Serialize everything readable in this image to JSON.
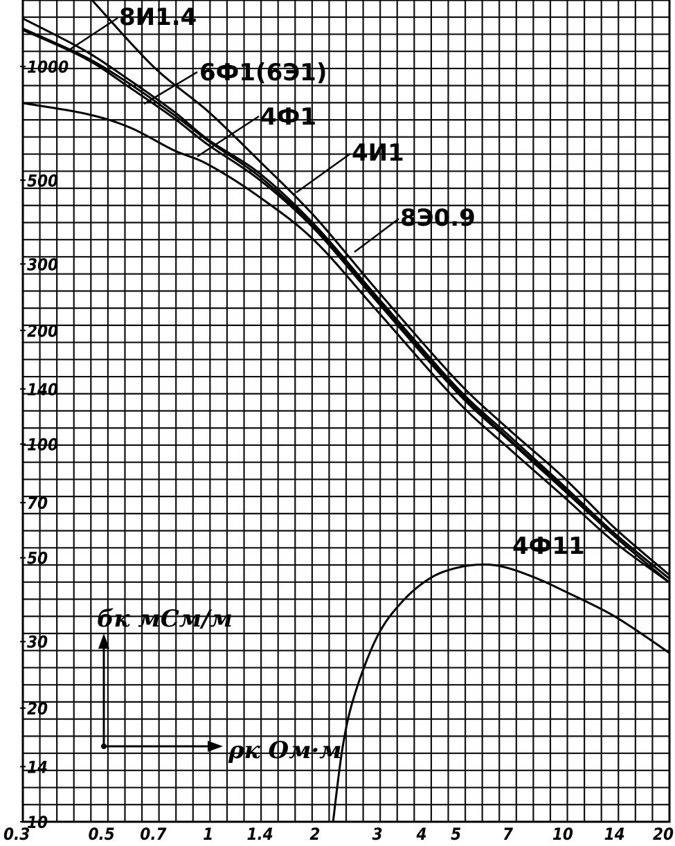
{
  "chart_data": {
    "type": "line",
    "x_scale": "log",
    "y_scale": "log",
    "xlim": [
      0.3,
      20
    ],
    "ylim": [
      10,
      1500
    ],
    "grid": true,
    "x_ticks": [
      {
        "value": 0.3,
        "label": "0.3"
      },
      {
        "value": 0.5,
        "label": "0.5"
      },
      {
        "value": 0.7,
        "label": "0.7"
      },
      {
        "value": 1,
        "label": "1"
      },
      {
        "value": 1.4,
        "label": "1.4"
      },
      {
        "value": 2,
        "label": "2"
      },
      {
        "value": 3,
        "label": "3"
      },
      {
        "value": 4,
        "label": "4"
      },
      {
        "value": 5,
        "label": "5"
      },
      {
        "value": 7,
        "label": "7"
      },
      {
        "value": 10,
        "label": "10"
      },
      {
        "value": 14,
        "label": "14"
      },
      {
        "value": 20,
        "label": "20"
      }
    ],
    "y_ticks": [
      {
        "value": 1000,
        "label": "1000"
      },
      {
        "value": 500,
        "label": "500"
      },
      {
        "value": 300,
        "label": "300"
      },
      {
        "value": 200,
        "label": "200"
      },
      {
        "value": 140,
        "label": "140"
      },
      {
        "value": 100,
        "label": "100"
      },
      {
        "value": 70,
        "label": "70"
      },
      {
        "value": 50,
        "label": "50"
      },
      {
        "value": 30,
        "label": "30"
      },
      {
        "value": 20,
        "label": "20"
      },
      {
        "value": 14,
        "label": "14"
      },
      {
        "value": 10,
        "label": "10"
      }
    ],
    "xlabel": "ρк Ом·м",
    "ylabel": "бк мСм/м",
    "series": [
      {
        "name": "8И1.4",
        "points": [
          [
            0.47,
            1500
          ],
          [
            0.7,
            1000
          ],
          [
            1.0,
            760
          ],
          [
            1.4,
            560
          ],
          [
            2.0,
            400
          ],
          [
            3.0,
            255
          ],
          [
            5.0,
            148
          ],
          [
            7.0,
            110
          ],
          [
            10.0,
            82
          ],
          [
            14.0,
            60
          ],
          [
            20.0,
            45
          ]
        ]
      },
      {
        "name": "6Ф1(6Э1)",
        "points": [
          [
            0.3,
            1340
          ],
          [
            0.45,
            1100
          ],
          [
            0.6,
            920
          ],
          [
            0.8,
            760
          ],
          [
            1.0,
            640
          ],
          [
            1.4,
            520
          ],
          [
            2.0,
            380
          ],
          [
            3.0,
            245
          ],
          [
            5.0,
            142
          ],
          [
            7.0,
            106
          ],
          [
            10.0,
            78
          ],
          [
            14.0,
            58
          ],
          [
            20.0,
            44
          ]
        ]
      },
      {
        "name": "4Ф1",
        "points": [
          [
            0.3,
            1250
          ],
          [
            0.45,
            1050
          ],
          [
            0.6,
            880
          ],
          [
            0.8,
            730
          ],
          [
            1.0,
            620
          ],
          [
            1.4,
            500
          ],
          [
            2.0,
            370
          ],
          [
            3.0,
            238
          ],
          [
            5.0,
            138
          ],
          [
            7.0,
            103
          ],
          [
            10.0,
            76
          ],
          [
            14.0,
            57
          ],
          [
            20.0,
            43
          ]
        ]
      },
      {
        "name": "4И1",
        "points": [
          [
            0.3,
            1260
          ],
          [
            0.45,
            1060
          ],
          [
            0.6,
            900
          ],
          [
            0.8,
            745
          ],
          [
            1.0,
            635
          ],
          [
            1.4,
            510
          ],
          [
            2.0,
            375
          ],
          [
            3.0,
            242
          ],
          [
            5.0,
            140
          ],
          [
            7.0,
            104
          ],
          [
            10.0,
            77
          ],
          [
            14.0,
            58
          ],
          [
            20.0,
            44
          ]
        ]
      },
      {
        "name": "8Э0.9",
        "points": [
          [
            0.3,
            800
          ],
          [
            0.45,
            750
          ],
          [
            0.6,
            690
          ],
          [
            0.8,
            600
          ],
          [
            1.0,
            550
          ],
          [
            1.4,
            450
          ],
          [
            2.0,
            345
          ],
          [
            3.0,
            225
          ],
          [
            5.0,
            131
          ],
          [
            7.0,
            98
          ],
          [
            10.0,
            73
          ],
          [
            14.0,
            55
          ],
          [
            20.0,
            43
          ]
        ]
      },
      {
        "name": "4Ф11",
        "points": [
          [
            2.25,
            10
          ],
          [
            2.4,
            16
          ],
          [
            2.6,
            22
          ],
          [
            3.0,
            31
          ],
          [
            3.5,
            38
          ],
          [
            4.2,
            44
          ],
          [
            5.0,
            47
          ],
          [
            6.0,
            48
          ],
          [
            7.0,
            47
          ],
          [
            8.5,
            44
          ],
          [
            10.0,
            41
          ],
          [
            14.0,
            35
          ],
          [
            20.0,
            28
          ]
        ]
      }
    ]
  }
}
